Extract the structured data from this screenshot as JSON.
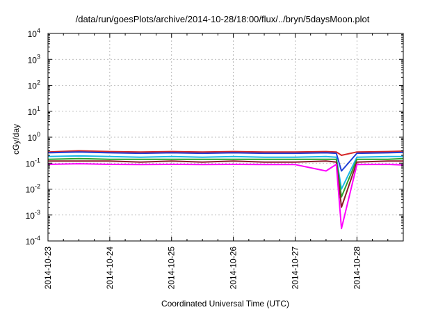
{
  "chart_data": {
    "type": "line",
    "title": "/data/run/goesPlots/archive/2014-10-28/18:00/flux/../bryn/5daysMoon.plot",
    "xlabel": "Coordinated Universal Time (UTC)",
    "ylabel": "cGy/day",
    "xlim": [
      "2014-10-23",
      "2014-10-28 18:00"
    ],
    "ylim": [
      0.0001,
      10000
    ],
    "yscale": "log",
    "grid": true,
    "x_ticks": [
      "2014-10-23",
      "2014-10-24",
      "2014-10-25",
      "2014-10-26",
      "2014-10-27",
      "2014-10-28"
    ],
    "y_ticks": [
      {
        "value": 0.0001,
        "base": "10",
        "exp": "-4"
      },
      {
        "value": 0.001,
        "base": "10",
        "exp": "-3"
      },
      {
        "value": 0.01,
        "base": "10",
        "exp": "-2"
      },
      {
        "value": 0.1,
        "base": "10",
        "exp": "-1"
      },
      {
        "value": 1,
        "base": "10",
        "exp": "0"
      },
      {
        "value": 10,
        "base": "10",
        "exp": "1"
      },
      {
        "value": 100,
        "base": "10",
        "exp": "2"
      },
      {
        "value": 1000,
        "base": "10",
        "exp": "3"
      },
      {
        "value": 10000,
        "base": "10",
        "exp": "4"
      }
    ],
    "series": [
      {
        "color": "#d62728",
        "x": [
          "2014-10-23",
          "2014-10-23 12:00",
          "2014-10-24",
          "2014-10-24 12:00",
          "2014-10-25",
          "2014-10-25 12:00",
          "2014-10-26",
          "2014-10-26 12:00",
          "2014-10-27",
          "2014-10-27 12:00",
          "2014-10-27 16:00",
          "2014-10-27 18:00",
          "2014-10-28",
          "2014-10-28 12:00",
          "2014-10-28 18:00"
        ],
        "values": [
          0.27,
          0.3,
          0.28,
          0.27,
          0.28,
          0.27,
          0.28,
          0.27,
          0.27,
          0.28,
          0.27,
          0.2,
          0.27,
          0.28,
          0.29
        ]
      },
      {
        "color": "#1f3fd6",
        "x": [
          "2014-10-23",
          "2014-10-23 12:00",
          "2014-10-24",
          "2014-10-24 12:00",
          "2014-10-25",
          "2014-10-25 12:00",
          "2014-10-26",
          "2014-10-26 12:00",
          "2014-10-27",
          "2014-10-27 12:00",
          "2014-10-27 16:00",
          "2014-10-27 18:00",
          "2014-10-28",
          "2014-10-28 12:00",
          "2014-10-28 18:00"
        ],
        "values": [
          0.25,
          0.27,
          0.25,
          0.24,
          0.25,
          0.24,
          0.25,
          0.24,
          0.24,
          0.25,
          0.24,
          0.05,
          0.24,
          0.25,
          0.26
        ]
      },
      {
        "color": "#1ab6e8",
        "x": [
          "2014-10-23",
          "2014-10-23 12:00",
          "2014-10-24",
          "2014-10-24 12:00",
          "2014-10-25",
          "2014-10-25 12:00",
          "2014-10-26",
          "2014-10-26 12:00",
          "2014-10-27",
          "2014-10-27 12:00",
          "2014-10-27 16:00",
          "2014-10-27 18:00",
          "2014-10-28",
          "2014-10-28 12:00",
          "2014-10-28 18:00"
        ],
        "values": [
          0.18,
          0.19,
          0.18,
          0.17,
          0.18,
          0.17,
          0.18,
          0.17,
          0.17,
          0.18,
          0.17,
          0.01,
          0.17,
          0.18,
          0.18
        ]
      },
      {
        "color": "#2ca02c",
        "x": [
          "2014-10-23",
          "2014-10-23 12:00",
          "2014-10-24",
          "2014-10-24 12:00",
          "2014-10-25",
          "2014-10-25 12:00",
          "2014-10-26",
          "2014-10-26 12:00",
          "2014-10-27",
          "2014-10-27 12:00",
          "2014-10-27 16:00",
          "2014-10-27 18:00",
          "2014-10-28",
          "2014-10-28 12:00",
          "2014-10-28 18:00"
        ],
        "values": [
          0.14,
          0.15,
          0.14,
          0.14,
          0.14,
          0.14,
          0.14,
          0.14,
          0.14,
          0.14,
          0.14,
          0.005,
          0.14,
          0.14,
          0.15
        ]
      },
      {
        "color": "#8c1a2a",
        "x": [
          "2014-10-23",
          "2014-10-23 12:00",
          "2014-10-24",
          "2014-10-24 12:00",
          "2014-10-25",
          "2014-10-25 12:00",
          "2014-10-26",
          "2014-10-26 12:00",
          "2014-10-27",
          "2014-10-27 12:00",
          "2014-10-27 16:00",
          "2014-10-27 18:00",
          "2014-10-28",
          "2014-10-28 12:00",
          "2014-10-28 18:00"
        ],
        "values": [
          0.12,
          0.12,
          0.12,
          0.11,
          0.12,
          0.11,
          0.12,
          0.11,
          0.11,
          0.12,
          0.11,
          0.002,
          0.11,
          0.12,
          0.12
        ]
      },
      {
        "color": "#ff00ff",
        "x": [
          "2014-10-23",
          "2014-10-23 12:00",
          "2014-10-24",
          "2014-10-24 12:00",
          "2014-10-25",
          "2014-10-25 12:00",
          "2014-10-26",
          "2014-10-26 12:00",
          "2014-10-27",
          "2014-10-27 12:00",
          "2014-10-27 16:00",
          "2014-10-27 18:00",
          "2014-10-28",
          "2014-10-28 12:00",
          "2014-10-28 18:00"
        ],
        "values": [
          0.09,
          0.095,
          0.09,
          0.088,
          0.09,
          0.088,
          0.09,
          0.088,
          0.088,
          0.05,
          0.09,
          0.0003,
          0.088,
          0.09,
          0.085
        ]
      }
    ]
  }
}
